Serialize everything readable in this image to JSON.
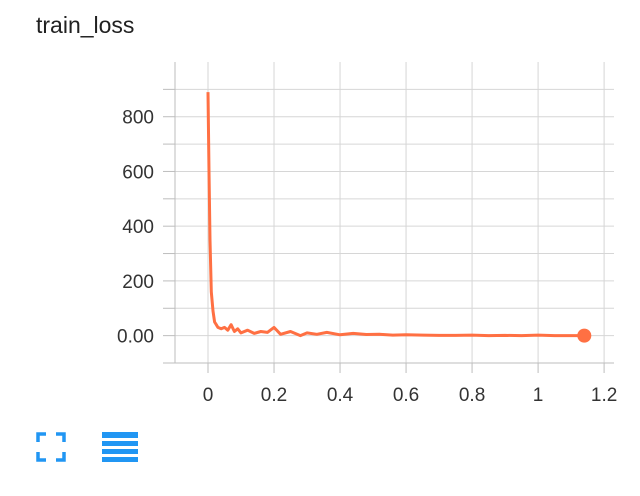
{
  "chart_data": {
    "type": "line",
    "title": "train_loss",
    "xlabel": "",
    "ylabel": "",
    "xlim": [
      -0.1,
      1.23
    ],
    "ylim": [
      -100,
      1000
    ],
    "xticks": [
      0,
      0.2,
      0.4,
      0.6,
      0.8,
      1,
      1.2
    ],
    "xtick_labels": [
      "0",
      "0.2",
      "0.4",
      "0.6",
      "0.8",
      "1",
      "1.2"
    ],
    "yticks": [
      0,
      200,
      400,
      600,
      800
    ],
    "ytick_labels": [
      "0.00",
      "200",
      "400",
      "600",
      "800"
    ],
    "grid": true,
    "series": [
      {
        "color": "#ff7043",
        "x": [
          0,
          0.003,
          0.006,
          0.01,
          0.015,
          0.02,
          0.025,
          0.03,
          0.04,
          0.05,
          0.06,
          0.07,
          0.08,
          0.09,
          0.1,
          0.12,
          0.14,
          0.16,
          0.18,
          0.2,
          0.22,
          0.25,
          0.28,
          0.3,
          0.33,
          0.36,
          0.4,
          0.44,
          0.48,
          0.52,
          0.56,
          0.6,
          0.65,
          0.7,
          0.75,
          0.8,
          0.85,
          0.9,
          0.95,
          1.0,
          1.05,
          1.1,
          1.14
        ],
        "y": [
          890,
          600,
          350,
          160,
          90,
          50,
          40,
          30,
          25,
          30,
          20,
          40,
          15,
          25,
          10,
          20,
          8,
          15,
          12,
          30,
          5,
          15,
          0,
          10,
          5,
          12,
          3,
          8,
          4,
          5,
          2,
          3,
          2,
          1,
          1,
          2,
          0,
          1,
          0,
          2,
          0,
          0,
          0
        ]
      }
    ]
  },
  "toolbar": {
    "fullscreen_icon": "fullscreen-icon",
    "legend_icon": "legend-list-icon",
    "accent": "#2196f3"
  }
}
